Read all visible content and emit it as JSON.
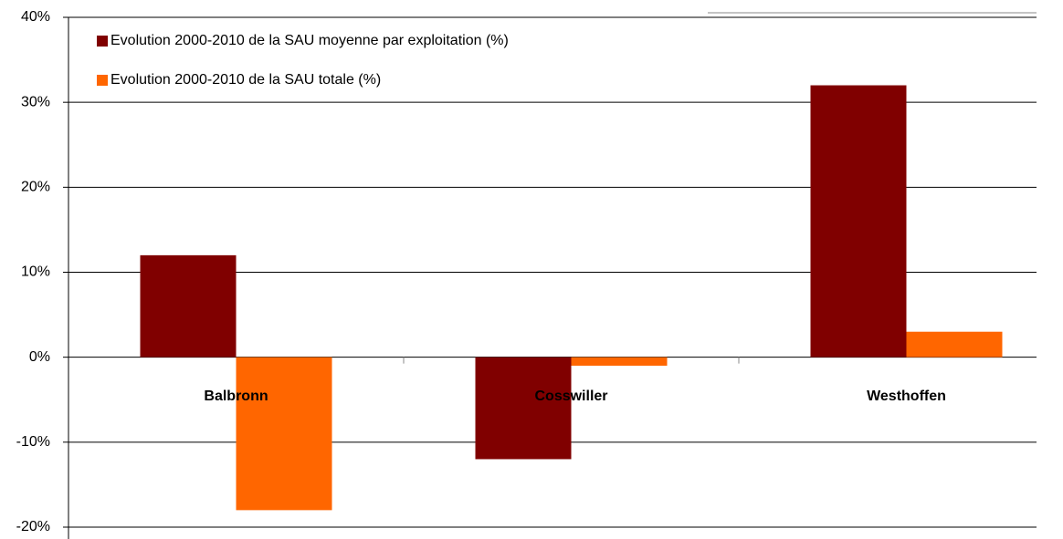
{
  "chart_data": {
    "type": "bar",
    "categories": [
      "Balbronn",
      "Cosswiller",
      "Westhoffen"
    ],
    "series": [
      {
        "name": "Evolution 2000-2010 de la SAU moyenne par exploitation  (%)",
        "color": "#800000",
        "values": [
          12,
          -12,
          32
        ]
      },
      {
        "name": "Evolution 2000-2010 de la SAU totale (%)",
        "color": "#ff6600",
        "values": [
          -18,
          -1,
          3
        ]
      }
    ],
    "ylim": [
      -20,
      40
    ],
    "yticks": [
      {
        "value": -20,
        "label": "-20%"
      },
      {
        "value": -10,
        "label": "-10%"
      },
      {
        "value": 0,
        "label": "0%"
      },
      {
        "value": 10,
        "label": "10%"
      },
      {
        "value": 20,
        "label": "20%"
      },
      {
        "value": 30,
        "label": "30%"
      },
      {
        "value": 40,
        "label": "40%"
      }
    ],
    "grid": true,
    "legend": "top-left"
  }
}
